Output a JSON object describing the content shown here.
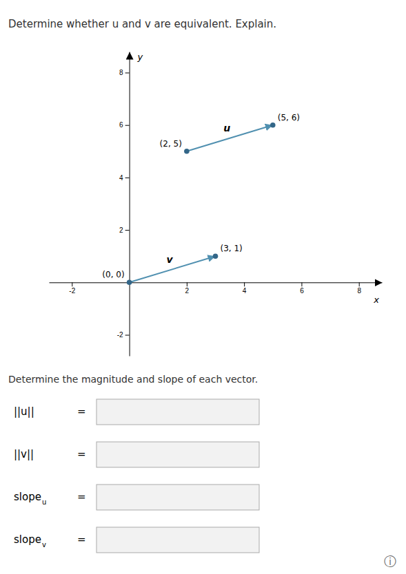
{
  "chart_data": {
    "type": "vector",
    "title": "Determine whether u and v are equivalent. Explain.",
    "subtitle": "Determine the magnitude and slope of each vector.",
    "x_label": "x",
    "y_label": "y",
    "xlim": [
      -2.8,
      8.8
    ],
    "ylim": [
      -2.8,
      8.8
    ],
    "xticks": [
      -2,
      2,
      4,
      6,
      8
    ],
    "yticks": [
      -2,
      2,
      4,
      6,
      8
    ],
    "grid": false,
    "color": "#336688",
    "series": [
      {
        "name": "u",
        "color": "#5090b0",
        "x": [
          2,
          5
        ],
        "y": [
          5,
          6
        ],
        "value_labels": [
          "(2, 5)",
          "(5, 6)"
        ]
      },
      {
        "name": "v",
        "color": "#5090b0",
        "x": [
          0,
          3
        ],
        "y": [
          0,
          1
        ],
        "value_labels": [
          "(0, 0)",
          "(3, 1)"
        ]
      }
    ],
    "annotations": [
      [
        "||u||",
        "="
      ],
      [
        "||v||",
        "="
      ],
      [
        "slope",
        "u",
        "="
      ],
      [
        "slope",
        "v",
        "="
      ],
      [
        "ⓘ"
      ]
    ]
  }
}
